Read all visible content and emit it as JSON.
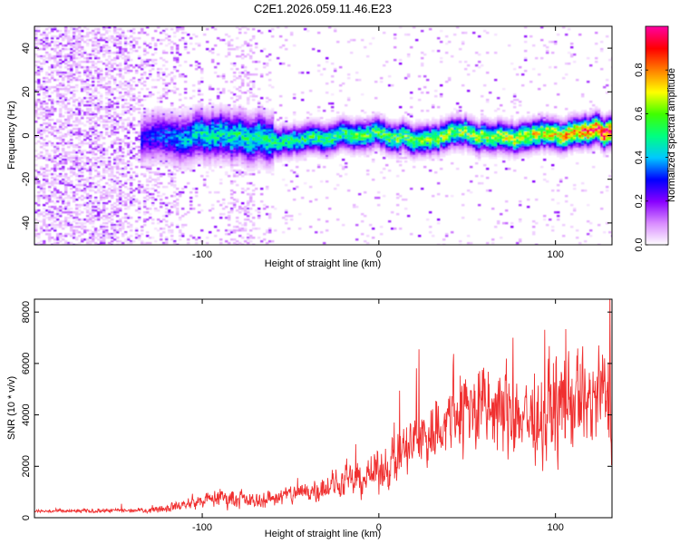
{
  "title": "C2E1.2026.059.11.46.E23",
  "chart_data": [
    {
      "type": "heatmap",
      "title": "C2E1.2026.059.11.46.E23",
      "xlabel": "Height of straight line (km)",
      "ylabel": "Frequency (Hz)",
      "xlim": [
        -195,
        132
      ],
      "ylim": [
        -50,
        50
      ],
      "xticks": [
        -100,
        0,
        100
      ],
      "yticks": [
        -40,
        -20,
        0,
        20,
        40
      ],
      "colorbar": {
        "label": "Normalized spectral amplitude",
        "range": [
          0,
          1
        ],
        "ticks": [
          "0.0",
          "0.2",
          "0.4",
          "0.6",
          "0.8"
        ],
        "colors": [
          "#ffffff",
          "#d98cff",
          "#8800ff",
          "#0000ff",
          "#00c8ff",
          "#00ff80",
          "#40ff00",
          "#ffff00",
          "#ff8000",
          "#ff0000",
          "#ff00a0"
        ]
      },
      "ridge": {
        "description_x": [
          -135,
          -100,
          -50,
          0,
          50,
          100,
          132
        ],
        "frequency_hz": [
          0,
          0,
          -2,
          0,
          -1,
          0,
          0
        ],
        "peak_amplitude": [
          0.25,
          0.45,
          0.5,
          0.55,
          0.6,
          0.7,
          0.95
        ]
      }
    },
    {
      "type": "line",
      "xlabel": "Height of straight line (km)",
      "ylabel": "SNR (10 * v/v)",
      "xlim": [
        -195,
        132
      ],
      "ylim": [
        0,
        8500
      ],
      "xticks": [
        -100,
        0,
        100
      ],
      "yticks": [
        0,
        2000,
        4000,
        6000,
        8000
      ],
      "series": [
        {
          "name": "SNR",
          "color": "#f03030",
          "x": [
            -195,
            -160,
            -130,
            -110,
            -90,
            -70,
            -50,
            -30,
            -10,
            0,
            10,
            20,
            30,
            40,
            50,
            60,
            70,
            80,
            90,
            100,
            110,
            120,
            132
          ],
          "y": [
            250,
            260,
            300,
            500,
            800,
            650,
            900,
            1200,
            1500,
            1800,
            2300,
            2900,
            3300,
            3800,
            4300,
            4200,
            4100,
            4000,
            3800,
            4400,
            4500,
            4600,
            4700
          ]
        }
      ]
    }
  ]
}
